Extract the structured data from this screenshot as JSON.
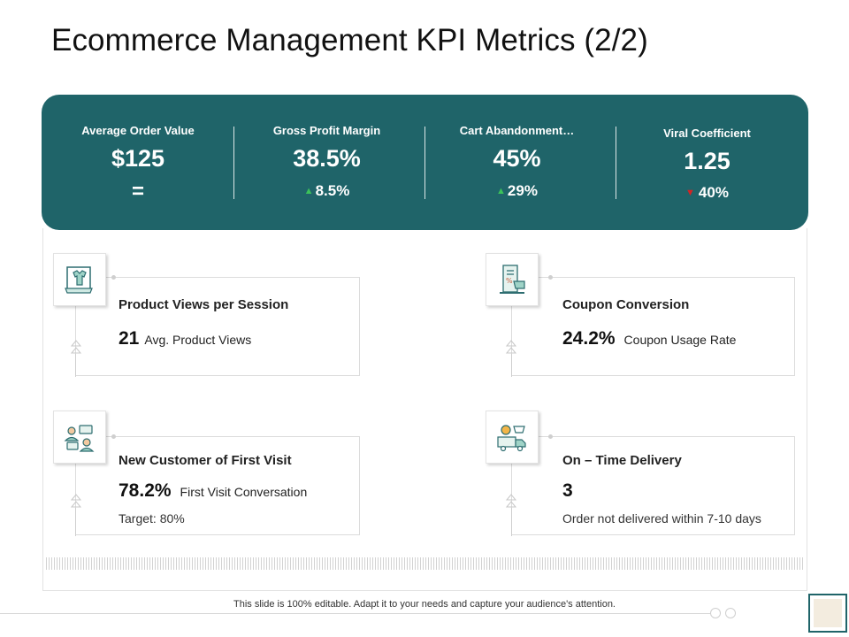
{
  "title": "Ecommerce Management KPI Metrics (2/2)",
  "kpis": [
    {
      "label": "Average Order Value",
      "value": "$125",
      "change": "=",
      "direction": "neutral"
    },
    {
      "label": "Gross Profit Margin",
      "value": "38.5%",
      "change": "8.5%",
      "direction": "up"
    },
    {
      "label": "Cart Abandonment…",
      "value": "45%",
      "change": "29%",
      "direction": "up"
    },
    {
      "label": "Viral Coefficient",
      "value": "1.25",
      "change": "40%",
      "direction": "down"
    }
  ],
  "cards": [
    {
      "title": "Product Views per Session",
      "value": "21",
      "sub": "Avg. Product Views",
      "note": "",
      "icon": "shopping-clothes-icon"
    },
    {
      "title": "Coupon Conversion",
      "value": "24.2%",
      "sub": "Coupon Usage Rate",
      "note": "",
      "icon": "coupon-icon"
    },
    {
      "title": "New Customer of First Visit",
      "value": "78.2%",
      "sub": "First Visit Conversation",
      "note": "Target: 80%",
      "icon": "customer-chat-icon"
    },
    {
      "title": "On – Time Delivery",
      "value": "3",
      "sub": "",
      "note": "Order not delivered within 7-10 days",
      "icon": "delivery-truck-icon"
    }
  ],
  "footer": "This slide is 100% editable. Adapt it to your needs and capture your audience's attention.",
  "colors": {
    "panel": "#1f6469",
    "up": "#3cc25a",
    "down": "#d42424"
  }
}
